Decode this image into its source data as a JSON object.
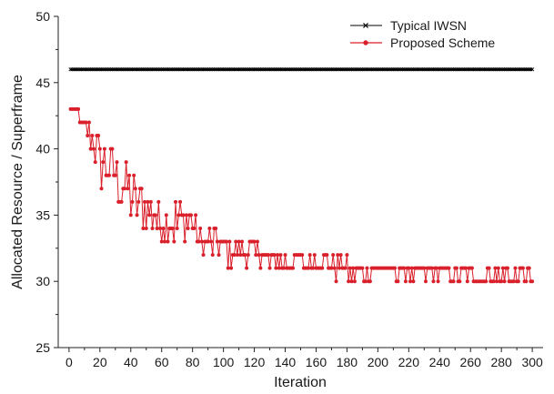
{
  "chart_data": {
    "type": "line",
    "xlabel": "Iteration",
    "ylabel": "Allocated Resource / Superframe",
    "xlim": [
      -7,
      307
    ],
    "ylim": [
      25,
      50
    ],
    "x_ticks": [
      0,
      20,
      40,
      60,
      80,
      100,
      120,
      140,
      160,
      180,
      200,
      220,
      240,
      260,
      280,
      300
    ],
    "y_ticks": [
      25,
      30,
      35,
      40,
      45,
      50
    ],
    "x_tick_labels": [
      "0",
      "20",
      "40",
      "60",
      "80",
      "100",
      "120",
      "140",
      "160",
      "180",
      "200",
      "220",
      "240",
      "260",
      "280",
      "300"
    ],
    "y_tick_labels": [
      "25",
      "30",
      "35",
      "40",
      "45",
      "50"
    ],
    "legend_position": "top-right",
    "series": [
      {
        "name": "Typical IWSN",
        "color": "#000000",
        "marker": "x",
        "x_start": 1,
        "x_end": 300,
        "constant_value": 46
      },
      {
        "name": "Proposed Scheme",
        "color": "#d9202b",
        "marker": "circle",
        "x_start": 1,
        "keypoints": [
          [
            1,
            43
          ],
          [
            5,
            42.5
          ],
          [
            10,
            41
          ],
          [
            15,
            41
          ],
          [
            20,
            39
          ],
          [
            25,
            38.5
          ],
          [
            30,
            38
          ],
          [
            35,
            37
          ],
          [
            40,
            36.5
          ],
          [
            45,
            36
          ],
          [
            50,
            35.5
          ],
          [
            55,
            35
          ],
          [
            60,
            34.5
          ],
          [
            65,
            34.5
          ],
          [
            70,
            34.5
          ],
          [
            75,
            34.5
          ],
          [
            80,
            34.5
          ],
          [
            85,
            33
          ],
          [
            90,
            33
          ],
          [
            95,
            32.8
          ],
          [
            100,
            32.5
          ],
          [
            110,
            32.2
          ],
          [
            120,
            32.3
          ],
          [
            125,
            32
          ],
          [
            130,
            31.5
          ],
          [
            140,
            31.5
          ],
          [
            150,
            31.5
          ],
          [
            160,
            31.5
          ],
          [
            170,
            31.2
          ],
          [
            180,
            30.8
          ],
          [
            190,
            30.5
          ],
          [
            200,
            30.8
          ],
          [
            220,
            30.7
          ],
          [
            240,
            30.8
          ],
          [
            260,
            30.5
          ],
          [
            280,
            30.4
          ],
          [
            300,
            30.3
          ]
        ],
        "noise_profile": [
          [
            1,
            0.5
          ],
          [
            20,
            2.0
          ],
          [
            60,
            2.0
          ],
          [
            85,
            1.5
          ],
          [
            100,
            1.2
          ],
          [
            125,
            1.0
          ],
          [
            160,
            0.8
          ],
          [
            200,
            0.7
          ],
          [
            300,
            0.6
          ]
        ],
        "min_value": 30,
        "max_value": 43
      }
    ]
  }
}
